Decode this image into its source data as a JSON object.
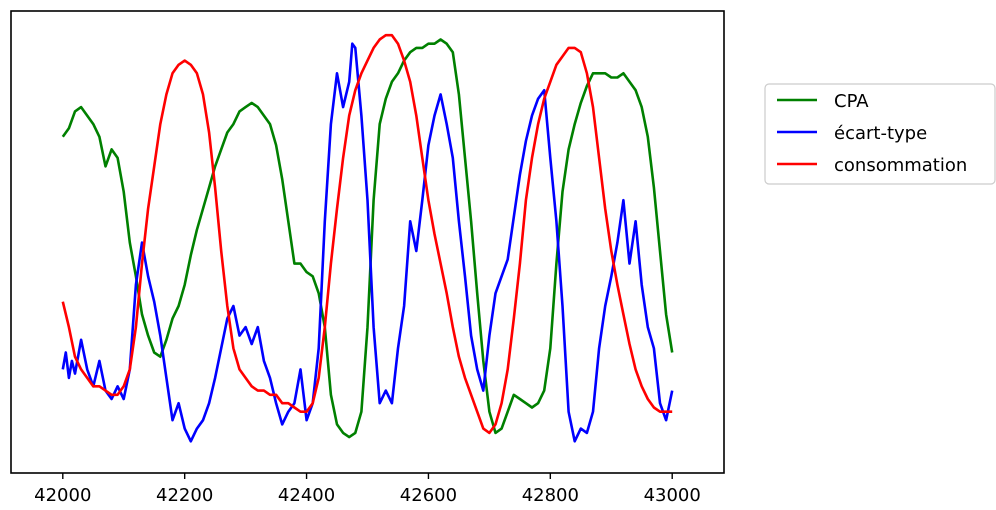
{
  "chart_data": {
    "type": "line",
    "title": "",
    "xlabel": "",
    "ylabel": "",
    "xlim": [
      41915,
      43085
    ],
    "ylim": [
      0,
      1
    ],
    "xticks": [
      42000,
      42200,
      42400,
      42600,
      42800,
      43000
    ],
    "xtick_labels": [
      "42000",
      "42200",
      "42400",
      "42600",
      "42800",
      "43000"
    ],
    "yticks_visible": false,
    "grid": false,
    "legend_placement": "right, outside plot area",
    "series": [
      {
        "name": "CPA",
        "color": "#008000",
        "points": [
          [
            42000,
            0.75
          ],
          [
            42010,
            0.77
          ],
          [
            42020,
            0.81
          ],
          [
            42030,
            0.82
          ],
          [
            42040,
            0.8
          ],
          [
            42050,
            0.78
          ],
          [
            42060,
            0.75
          ],
          [
            42070,
            0.68
          ],
          [
            42080,
            0.72
          ],
          [
            42090,
            0.7
          ],
          [
            42100,
            0.62
          ],
          [
            42110,
            0.5
          ],
          [
            42120,
            0.42
          ],
          [
            42130,
            0.33
          ],
          [
            42140,
            0.28
          ],
          [
            42150,
            0.24
          ],
          [
            42160,
            0.23
          ],
          [
            42170,
            0.27
          ],
          [
            42180,
            0.32
          ],
          [
            42190,
            0.35
          ],
          [
            42200,
            0.4
          ],
          [
            42210,
            0.47
          ],
          [
            42220,
            0.53
          ],
          [
            42230,
            0.58
          ],
          [
            42240,
            0.63
          ],
          [
            42250,
            0.68
          ],
          [
            42260,
            0.72
          ],
          [
            42270,
            0.76
          ],
          [
            42280,
            0.78
          ],
          [
            42290,
            0.81
          ],
          [
            42300,
            0.82
          ],
          [
            42310,
            0.83
          ],
          [
            42320,
            0.82
          ],
          [
            42330,
            0.8
          ],
          [
            42340,
            0.78
          ],
          [
            42350,
            0.73
          ],
          [
            42360,
            0.65
          ],
          [
            42370,
            0.55
          ],
          [
            42380,
            0.45
          ],
          [
            42390,
            0.45
          ],
          [
            42400,
            0.43
          ],
          [
            42410,
            0.42
          ],
          [
            42420,
            0.38
          ],
          [
            42430,
            0.3
          ],
          [
            42440,
            0.14
          ],
          [
            42450,
            0.07
          ],
          [
            42460,
            0.05
          ],
          [
            42470,
            0.04
          ],
          [
            42480,
            0.05
          ],
          [
            42490,
            0.1
          ],
          [
            42500,
            0.3
          ],
          [
            42510,
            0.6
          ],
          [
            42520,
            0.78
          ],
          [
            42530,
            0.84
          ],
          [
            42540,
            0.88
          ],
          [
            42550,
            0.9
          ],
          [
            42560,
            0.93
          ],
          [
            42570,
            0.95
          ],
          [
            42580,
            0.96
          ],
          [
            42590,
            0.96
          ],
          [
            42600,
            0.97
          ],
          [
            42610,
            0.97
          ],
          [
            42620,
            0.98
          ],
          [
            42630,
            0.97
          ],
          [
            42640,
            0.95
          ],
          [
            42650,
            0.85
          ],
          [
            42660,
            0.7
          ],
          [
            42670,
            0.55
          ],
          [
            42680,
            0.38
          ],
          [
            42690,
            0.22
          ],
          [
            42700,
            0.1
          ],
          [
            42710,
            0.05
          ],
          [
            42720,
            0.06
          ],
          [
            42730,
            0.1
          ],
          [
            42740,
            0.14
          ],
          [
            42750,
            0.13
          ],
          [
            42760,
            0.12
          ],
          [
            42770,
            0.11
          ],
          [
            42780,
            0.12
          ],
          [
            42790,
            0.15
          ],
          [
            42800,
            0.25
          ],
          [
            42810,
            0.45
          ],
          [
            42820,
            0.62
          ],
          [
            42830,
            0.72
          ],
          [
            42840,
            0.78
          ],
          [
            42850,
            0.83
          ],
          [
            42860,
            0.87
          ],
          [
            42870,
            0.9
          ],
          [
            42880,
            0.9
          ],
          [
            42890,
            0.9
          ],
          [
            42900,
            0.89
          ],
          [
            42910,
            0.89
          ],
          [
            42920,
            0.9
          ],
          [
            42930,
            0.88
          ],
          [
            42940,
            0.86
          ],
          [
            42950,
            0.82
          ],
          [
            42960,
            0.75
          ],
          [
            42970,
            0.63
          ],
          [
            42980,
            0.48
          ],
          [
            42990,
            0.33
          ],
          [
            43000,
            0.24
          ]
        ]
      },
      {
        "name": "écart-type",
        "color": "#0000ff",
        "points": [
          [
            42000,
            0.2
          ],
          [
            42005,
            0.24
          ],
          [
            42010,
            0.18
          ],
          [
            42015,
            0.22
          ],
          [
            42020,
            0.19
          ],
          [
            42030,
            0.27
          ],
          [
            42040,
            0.2
          ],
          [
            42050,
            0.16
          ],
          [
            42060,
            0.22
          ],
          [
            42070,
            0.15
          ],
          [
            42080,
            0.13
          ],
          [
            42090,
            0.16
          ],
          [
            42100,
            0.13
          ],
          [
            42110,
            0.2
          ],
          [
            42120,
            0.4
          ],
          [
            42130,
            0.5
          ],
          [
            42140,
            0.42
          ],
          [
            42150,
            0.36
          ],
          [
            42160,
            0.28
          ],
          [
            42170,
            0.18
          ],
          [
            42180,
            0.08
          ],
          [
            42190,
            0.12
          ],
          [
            42200,
            0.06
          ],
          [
            42210,
            0.03
          ],
          [
            42220,
            0.06
          ],
          [
            42230,
            0.08
          ],
          [
            42240,
            0.12
          ],
          [
            42250,
            0.18
          ],
          [
            42260,
            0.25
          ],
          [
            42270,
            0.32
          ],
          [
            42280,
            0.35
          ],
          [
            42290,
            0.28
          ],
          [
            42300,
            0.3
          ],
          [
            42310,
            0.26
          ],
          [
            42320,
            0.3
          ],
          [
            42330,
            0.22
          ],
          [
            42340,
            0.18
          ],
          [
            42350,
            0.12
          ],
          [
            42360,
            0.07
          ],
          [
            42370,
            0.1
          ],
          [
            42380,
            0.12
          ],
          [
            42390,
            0.2
          ],
          [
            42400,
            0.08
          ],
          [
            42410,
            0.12
          ],
          [
            42420,
            0.25
          ],
          [
            42430,
            0.55
          ],
          [
            42440,
            0.78
          ],
          [
            42450,
            0.9
          ],
          [
            42460,
            0.82
          ],
          [
            42470,
            0.88
          ],
          [
            42475,
            0.97
          ],
          [
            42480,
            0.96
          ],
          [
            42490,
            0.8
          ],
          [
            42500,
            0.6
          ],
          [
            42510,
            0.3
          ],
          [
            42520,
            0.12
          ],
          [
            42530,
            0.15
          ],
          [
            42540,
            0.12
          ],
          [
            42550,
            0.25
          ],
          [
            42560,
            0.35
          ],
          [
            42570,
            0.55
          ],
          [
            42580,
            0.48
          ],
          [
            42590,
            0.6
          ],
          [
            42600,
            0.73
          ],
          [
            42610,
            0.8
          ],
          [
            42620,
            0.85
          ],
          [
            42630,
            0.78
          ],
          [
            42640,
            0.7
          ],
          [
            42650,
            0.55
          ],
          [
            42660,
            0.42
          ],
          [
            42670,
            0.28
          ],
          [
            42680,
            0.2
          ],
          [
            42690,
            0.15
          ],
          [
            42700,
            0.28
          ],
          [
            42710,
            0.38
          ],
          [
            42720,
            0.42
          ],
          [
            42730,
            0.46
          ],
          [
            42740,
            0.56
          ],
          [
            42750,
            0.66
          ],
          [
            42760,
            0.74
          ],
          [
            42770,
            0.8
          ],
          [
            42780,
            0.84
          ],
          [
            42790,
            0.86
          ],
          [
            42800,
            0.7
          ],
          [
            42810,
            0.55
          ],
          [
            42820,
            0.35
          ],
          [
            42830,
            0.1
          ],
          [
            42840,
            0.03
          ],
          [
            42850,
            0.06
          ],
          [
            42860,
            0.05
          ],
          [
            42870,
            0.1
          ],
          [
            42880,
            0.25
          ],
          [
            42890,
            0.35
          ],
          [
            42900,
            0.42
          ],
          [
            42910,
            0.5
          ],
          [
            42920,
            0.6
          ],
          [
            42930,
            0.45
          ],
          [
            42940,
            0.55
          ],
          [
            42950,
            0.4
          ],
          [
            42960,
            0.3
          ],
          [
            42970,
            0.25
          ],
          [
            42980,
            0.12
          ],
          [
            42990,
            0.08
          ],
          [
            43000,
            0.15
          ]
        ]
      },
      {
        "name": "consommation",
        "color": "#ff0000",
        "points": [
          [
            42000,
            0.36
          ],
          [
            42010,
            0.3
          ],
          [
            42020,
            0.23
          ],
          [
            42030,
            0.2
          ],
          [
            42040,
            0.18
          ],
          [
            42050,
            0.16
          ],
          [
            42060,
            0.16
          ],
          [
            42070,
            0.15
          ],
          [
            42080,
            0.14
          ],
          [
            42090,
            0.14
          ],
          [
            42100,
            0.16
          ],
          [
            42110,
            0.2
          ],
          [
            42120,
            0.3
          ],
          [
            42130,
            0.45
          ],
          [
            42140,
            0.58
          ],
          [
            42150,
            0.68
          ],
          [
            42160,
            0.78
          ],
          [
            42170,
            0.85
          ],
          [
            42180,
            0.9
          ],
          [
            42190,
            0.92
          ],
          [
            42200,
            0.93
          ],
          [
            42210,
            0.92
          ],
          [
            42220,
            0.9
          ],
          [
            42230,
            0.85
          ],
          [
            42240,
            0.76
          ],
          [
            42250,
            0.63
          ],
          [
            42260,
            0.48
          ],
          [
            42270,
            0.35
          ],
          [
            42280,
            0.25
          ],
          [
            42290,
            0.2
          ],
          [
            42300,
            0.18
          ],
          [
            42310,
            0.16
          ],
          [
            42320,
            0.15
          ],
          [
            42330,
            0.15
          ],
          [
            42340,
            0.14
          ],
          [
            42350,
            0.14
          ],
          [
            42360,
            0.12
          ],
          [
            42370,
            0.12
          ],
          [
            42380,
            0.11
          ],
          [
            42390,
            0.1
          ],
          [
            42400,
            0.1
          ],
          [
            42410,
            0.12
          ],
          [
            42420,
            0.18
          ],
          [
            42430,
            0.3
          ],
          [
            42440,
            0.45
          ],
          [
            42450,
            0.58
          ],
          [
            42460,
            0.7
          ],
          [
            42470,
            0.8
          ],
          [
            42480,
            0.86
          ],
          [
            42490,
            0.9
          ],
          [
            42500,
            0.93
          ],
          [
            42510,
            0.96
          ],
          [
            42520,
            0.98
          ],
          [
            42530,
            0.99
          ],
          [
            42540,
            0.99
          ],
          [
            42550,
            0.97
          ],
          [
            42560,
            0.93
          ],
          [
            42570,
            0.88
          ],
          [
            42580,
            0.8
          ],
          [
            42590,
            0.7
          ],
          [
            42600,
            0.6
          ],
          [
            42610,
            0.52
          ],
          [
            42620,
            0.45
          ],
          [
            42630,
            0.38
          ],
          [
            42640,
            0.3
          ],
          [
            42650,
            0.23
          ],
          [
            42660,
            0.18
          ],
          [
            42670,
            0.14
          ],
          [
            42680,
            0.1
          ],
          [
            42690,
            0.06
          ],
          [
            42700,
            0.05
          ],
          [
            42710,
            0.07
          ],
          [
            42720,
            0.12
          ],
          [
            42730,
            0.2
          ],
          [
            42740,
            0.32
          ],
          [
            42750,
            0.45
          ],
          [
            42760,
            0.6
          ],
          [
            42770,
            0.7
          ],
          [
            42780,
            0.78
          ],
          [
            42790,
            0.84
          ],
          [
            42800,
            0.88
          ],
          [
            42810,
            0.92
          ],
          [
            42820,
            0.94
          ],
          [
            42830,
            0.96
          ],
          [
            42840,
            0.96
          ],
          [
            42850,
            0.95
          ],
          [
            42860,
            0.9
          ],
          [
            42870,
            0.82
          ],
          [
            42880,
            0.7
          ],
          [
            42890,
            0.58
          ],
          [
            42900,
            0.48
          ],
          [
            42910,
            0.4
          ],
          [
            42920,
            0.33
          ],
          [
            42930,
            0.26
          ],
          [
            42940,
            0.2
          ],
          [
            42950,
            0.16
          ],
          [
            42960,
            0.13
          ],
          [
            42970,
            0.11
          ],
          [
            42980,
            0.1
          ],
          [
            42990,
            0.1
          ],
          [
            43000,
            0.1
          ]
        ]
      }
    ]
  }
}
